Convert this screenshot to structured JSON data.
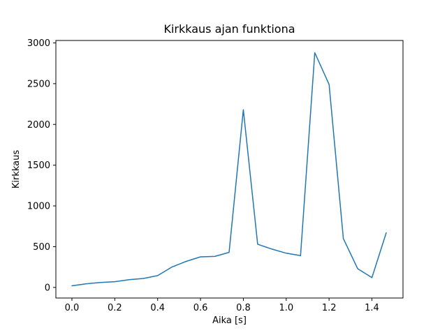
{
  "chart_data": {
    "type": "line",
    "title": "Kirkkaus ajan funktiona",
    "xlabel": "Aika [s]",
    "ylabel": "Kirkkaus",
    "x": [
      0.0,
      0.0667,
      0.1333,
      0.2,
      0.2667,
      0.3333,
      0.4,
      0.4667,
      0.5333,
      0.6,
      0.6667,
      0.7333,
      0.8,
      0.8667,
      0.9333,
      1.0,
      1.0667,
      1.1333,
      1.2,
      1.2667,
      1.3333,
      1.4,
      1.4667
    ],
    "y": [
      20,
      45,
      60,
      70,
      95,
      110,
      145,
      250,
      320,
      375,
      380,
      430,
      2180,
      530,
      470,
      420,
      390,
      2880,
      2490,
      600,
      230,
      120,
      670
    ],
    "x_ticks": [
      0.0,
      0.2,
      0.4,
      0.6,
      0.8,
      1.0,
      1.2,
      1.4
    ],
    "x_tick_labels": [
      "0.0",
      "0.2",
      "0.4",
      "0.6",
      "0.8",
      "1.0",
      "1.2",
      "1.4"
    ],
    "y_ticks": [
      0,
      500,
      1000,
      1500,
      2000,
      2500,
      3000
    ],
    "y_tick_labels": [
      "0",
      "500",
      "1000",
      "1500",
      "2000",
      "2500",
      "3000"
    ],
    "xlim": [
      -0.075,
      1.545
    ],
    "ylim": [
      -130,
      3030
    ],
    "line_color": "#1f77b4",
    "background_color": "#ffffff",
    "spine_color": "#000000",
    "grid": false,
    "legend": null
  }
}
